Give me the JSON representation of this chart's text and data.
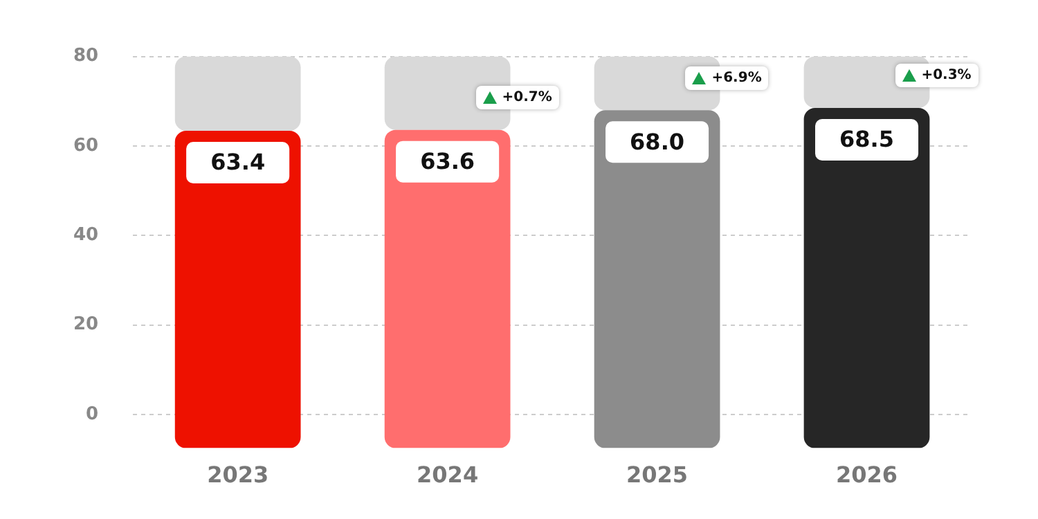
{
  "chart_data": {
    "type": "bar",
    "categories": [
      "2023",
      "2024",
      "2025",
      "2026"
    ],
    "series": [
      {
        "color": "#d9d9d9",
        "base": [
          63.4,
          63.6,
          68.0,
          68.5
        ],
        "values": [
          16.6,
          16.4,
          12.0,
          11.5
        ],
        "value_labels": [
          null,
          null,
          null,
          null
        ]
      },
      {
        "colors": [
          "#ee1100",
          "#ff6e6e",
          "#8c8c8c",
          "#262626"
        ],
        "base": [
          -7.5,
          -7.5,
          -7.5,
          -7.5
        ],
        "values": [
          70.9,
          71.1,
          75.5,
          76.0
        ],
        "value_labels": [
          "63.4",
          "63.6",
          "68.0",
          "68.5"
        ]
      }
    ],
    "ylim": [
      -7.5,
      80
    ],
    "yticks": [
      0,
      20,
      40,
      60,
      80
    ],
    "grid": "y",
    "legend": false,
    "annotations": [
      "+0.7%",
      "+6.9%",
      "+0.3%"
    ]
  }
}
